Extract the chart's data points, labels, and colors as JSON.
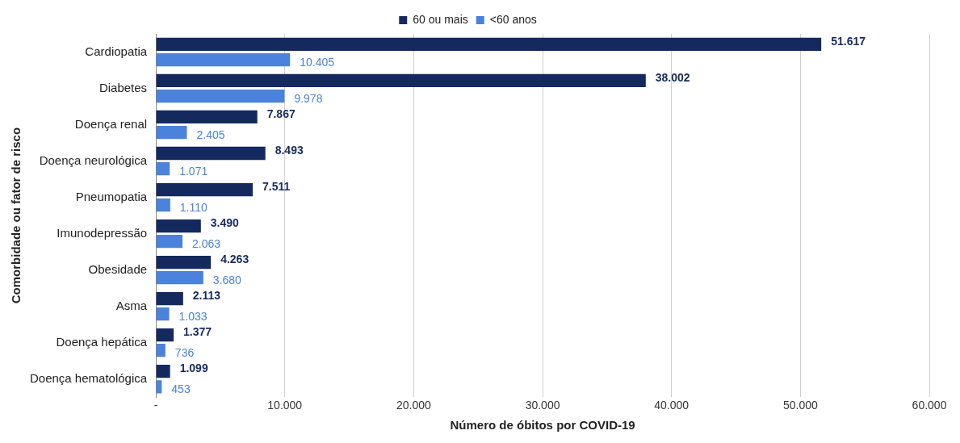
{
  "chart_data": {
    "type": "bar",
    "orientation": "horizontal",
    "xlabel": "Número de óbitos por COVID-19",
    "ylabel": "Comorbidade ou fator de risco",
    "categories": [
      "Cardiopatia",
      "Diabetes",
      "Doença renal",
      "Doença neurológica",
      "Pneumopatia",
      "Imunodepressão",
      "Obesidade",
      "Asma",
      "Doença hepática",
      "Doença hematológica"
    ],
    "series": [
      {
        "name": "60 ou mais",
        "color": "#142a5e",
        "values": [
          51617,
          38002,
          7867,
          8493,
          7511,
          3490,
          4263,
          2113,
          1377,
          1099
        ],
        "value_labels": [
          "51.617",
          "38.002",
          "7.867",
          "8.493",
          "7.511",
          "3.490",
          "4.263",
          "2.113",
          "1.377",
          "1.099"
        ]
      },
      {
        "name": "<60 anos",
        "color": "#4a82dc",
        "values": [
          10405,
          9978,
          2405,
          1071,
          1110,
          2063,
          3680,
          1033,
          736,
          453
        ],
        "value_labels": [
          "10.405",
          "9.978",
          "2.405",
          "1.071",
          "1.110",
          "2.063",
          "3.680",
          "1.033",
          "736",
          "453"
        ]
      }
    ],
    "xlim": [
      0,
      60000
    ],
    "xticks": [
      {
        "value": 0,
        "label": "-"
      },
      {
        "value": 10000,
        "label": "10.000"
      },
      {
        "value": 20000,
        "label": "20.000"
      },
      {
        "value": 30000,
        "label": "30.000"
      },
      {
        "value": 40000,
        "label": "40.000"
      },
      {
        "value": 50000,
        "label": "50.000"
      },
      {
        "value": 60000,
        "label": "60.000"
      }
    ],
    "grid": "x",
    "legend": "top"
  }
}
